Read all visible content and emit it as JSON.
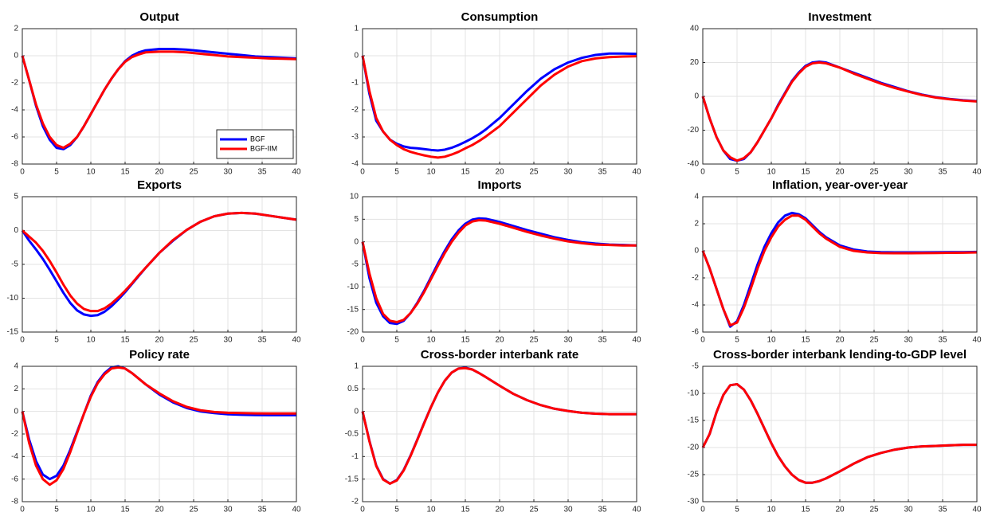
{
  "chart_data": [
    {
      "type": "line",
      "title": "Output",
      "legend": "lower right",
      "x": [
        0,
        1,
        2,
        3,
        4,
        5,
        6,
        7,
        8,
        9,
        10,
        11,
        12,
        13,
        14,
        15,
        16,
        17,
        18,
        20,
        22,
        24,
        26,
        28,
        30,
        32,
        34,
        36,
        38,
        40
      ],
      "series": [
        {
          "name": "BGF",
          "color": "#0000ff",
          "values": [
            0,
            -1.8,
            -3.7,
            -5.2,
            -6.2,
            -6.8,
            -6.9,
            -6.6,
            -6.0,
            -5.2,
            -4.3,
            -3.4,
            -2.5,
            -1.7,
            -1.0,
            -0.4,
            0,
            0.25,
            0.4,
            0.5,
            0.5,
            0.45,
            0.35,
            0.25,
            0.15,
            0.05,
            -0.05,
            -0.1,
            -0.15,
            -0.2
          ]
        },
        {
          "name": "BGF-IIM",
          "color": "#ff0000",
          "values": [
            0,
            -1.8,
            -3.6,
            -5.0,
            -6.0,
            -6.6,
            -6.8,
            -6.5,
            -6.0,
            -5.2,
            -4.3,
            -3.4,
            -2.5,
            -1.7,
            -1.0,
            -0.45,
            -0.1,
            0.1,
            0.25,
            0.3,
            0.3,
            0.25,
            0.15,
            0.05,
            -0.05,
            -0.1,
            -0.15,
            -0.2,
            -0.22,
            -0.25
          ]
        }
      ],
      "xlim": [
        0,
        40
      ],
      "xticks": [
        0,
        5,
        10,
        15,
        20,
        25,
        30,
        35,
        40
      ],
      "ylim": [
        -8,
        2
      ],
      "yticks": [
        -8,
        -6,
        -4,
        -2,
        0,
        2
      ],
      "grid": true
    },
    {
      "type": "line",
      "title": "Consumption",
      "x": [
        0,
        1,
        2,
        3,
        4,
        5,
        6,
        7,
        8,
        9,
        10,
        11,
        12,
        13,
        14,
        15,
        16,
        17,
        18,
        20,
        22,
        24,
        26,
        28,
        30,
        32,
        34,
        36,
        38,
        40
      ],
      "series": [
        {
          "color": "#0000ff",
          "values": [
            0,
            -1.4,
            -2.4,
            -2.8,
            -3.1,
            -3.25,
            -3.35,
            -3.4,
            -3.42,
            -3.45,
            -3.48,
            -3.5,
            -3.47,
            -3.4,
            -3.3,
            -3.18,
            -3.05,
            -2.9,
            -2.72,
            -2.3,
            -1.8,
            -1.3,
            -0.85,
            -0.5,
            -0.25,
            -0.08,
            0.03,
            0.08,
            0.08,
            0.07
          ]
        },
        {
          "color": "#ff0000",
          "values": [
            0,
            -1.3,
            -2.3,
            -2.8,
            -3.1,
            -3.3,
            -3.45,
            -3.55,
            -3.62,
            -3.68,
            -3.73,
            -3.76,
            -3.73,
            -3.65,
            -3.55,
            -3.42,
            -3.3,
            -3.15,
            -2.98,
            -2.6,
            -2.1,
            -1.6,
            -1.1,
            -0.7,
            -0.4,
            -0.2,
            -0.1,
            -0.05,
            -0.03,
            -0.02
          ]
        }
      ],
      "xlim": [
        0,
        40
      ],
      "xticks": [
        0,
        5,
        10,
        15,
        20,
        25,
        30,
        35,
        40
      ],
      "ylim": [
        -4,
        1
      ],
      "yticks": [
        -4,
        -3,
        -2,
        -1,
        0,
        1
      ],
      "grid": true
    },
    {
      "type": "line",
      "title": "Investment",
      "x": [
        0,
        1,
        2,
        3,
        4,
        5,
        6,
        7,
        8,
        9,
        10,
        11,
        12,
        13,
        14,
        15,
        16,
        17,
        18,
        20,
        22,
        24,
        26,
        28,
        30,
        32,
        34,
        36,
        38,
        40
      ],
      "series": [
        {
          "color": "#0000ff",
          "values": [
            0,
            -13,
            -24,
            -32,
            -37,
            -38,
            -37,
            -33,
            -27,
            -20,
            -13,
            -5,
            2,
            9,
            14,
            18,
            20,
            20.5,
            20,
            17,
            14,
            11,
            8,
            5.5,
            3,
            1,
            -0.5,
            -1.5,
            -2.3,
            -2.8
          ]
        },
        {
          "color": "#ff0000",
          "values": [
            0,
            -13,
            -24,
            -32,
            -36,
            -38,
            -36.5,
            -33,
            -27,
            -20,
            -13,
            -5.5,
            1.5,
            8.5,
            13.5,
            17.5,
            19.5,
            20,
            19.5,
            17,
            13.5,
            10.5,
            7.5,
            5,
            2.8,
            0.8,
            -0.7,
            -1.7,
            -2.5,
            -3
          ]
        }
      ],
      "xlim": [
        0,
        40
      ],
      "xticks": [
        0,
        5,
        10,
        15,
        20,
        25,
        30,
        35,
        40
      ],
      "ylim": [
        -40,
        40
      ],
      "yticks": [
        -40,
        -20,
        0,
        20,
        40
      ],
      "grid": true
    },
    {
      "type": "line",
      "title": "Exports",
      "x": [
        0,
        1,
        2,
        3,
        4,
        5,
        6,
        7,
        8,
        9,
        10,
        11,
        12,
        13,
        14,
        15,
        16,
        17,
        18,
        20,
        22,
        24,
        26,
        28,
        30,
        32,
        34,
        36,
        38,
        40
      ],
      "series": [
        {
          "color": "#0000ff",
          "values": [
            0,
            -1.5,
            -2.8,
            -4.2,
            -5.8,
            -7.5,
            -9.2,
            -10.7,
            -11.8,
            -12.4,
            -12.6,
            -12.5,
            -12.0,
            -11.2,
            -10.2,
            -9.1,
            -7.9,
            -6.7,
            -5.5,
            -3.3,
            -1.5,
            0.1,
            1.3,
            2.1,
            2.5,
            2.6,
            2.5,
            2.2,
            1.9,
            1.6
          ]
        },
        {
          "color": "#ff0000",
          "values": [
            0,
            -0.9,
            -1.8,
            -3.0,
            -4.5,
            -6.2,
            -8.0,
            -9.6,
            -10.8,
            -11.6,
            -11.9,
            -11.9,
            -11.5,
            -10.8,
            -9.9,
            -8.9,
            -7.8,
            -6.6,
            -5.5,
            -3.3,
            -1.4,
            0.1,
            1.3,
            2.1,
            2.5,
            2.6,
            2.5,
            2.2,
            1.9,
            1.6
          ]
        }
      ],
      "xlim": [
        0,
        40
      ],
      "xticks": [
        0,
        5,
        10,
        15,
        20,
        25,
        30,
        35,
        40
      ],
      "ylim": [
        -15,
        5
      ],
      "yticks": [
        -15,
        -10,
        -5,
        0,
        5
      ],
      "grid": true
    },
    {
      "type": "line",
      "title": "Imports",
      "x": [
        0,
        1,
        2,
        3,
        4,
        5,
        6,
        7,
        8,
        9,
        10,
        11,
        12,
        13,
        14,
        15,
        16,
        17,
        18,
        20,
        22,
        24,
        26,
        28,
        30,
        32,
        34,
        36,
        38,
        40
      ],
      "series": [
        {
          "color": "#0000ff",
          "values": [
            0,
            -8,
            -13.5,
            -16.5,
            -18,
            -18.2,
            -17.5,
            -15.8,
            -13.5,
            -10.8,
            -7.8,
            -4.8,
            -2,
            0.5,
            2.5,
            4,
            4.9,
            5.2,
            5.1,
            4.4,
            3.5,
            2.6,
            1.8,
            1.0,
            0.4,
            -0.1,
            -0.4,
            -0.6,
            -0.7,
            -0.8
          ]
        },
        {
          "color": "#ff0000",
          "values": [
            0,
            -7,
            -12.5,
            -16,
            -17.5,
            -17.8,
            -17.3,
            -15.8,
            -13.7,
            -11.1,
            -8.2,
            -5.3,
            -2.5,
            0,
            2,
            3.6,
            4.5,
            4.8,
            4.7,
            4.0,
            3.1,
            2.2,
            1.4,
            0.7,
            0.1,
            -0.3,
            -0.6,
            -0.7,
            -0.8,
            -0.8
          ]
        }
      ],
      "xlim": [
        0,
        40
      ],
      "xticks": [
        0,
        5,
        10,
        15,
        20,
        25,
        30,
        35,
        40
      ],
      "ylim": [
        -20,
        10
      ],
      "yticks": [
        -20,
        -15,
        -10,
        -5,
        0,
        5,
        10
      ],
      "grid": true
    },
    {
      "type": "line",
      "title": "Inflation, year-over-year",
      "x": [
        0,
        1,
        2,
        3,
        4,
        5,
        6,
        7,
        8,
        9,
        10,
        11,
        12,
        13,
        14,
        15,
        16,
        17,
        18,
        20,
        22,
        24,
        26,
        28,
        30,
        32,
        34,
        36,
        38,
        40
      ],
      "series": [
        {
          "color": "#0000ff",
          "values": [
            0,
            -1.3,
            -2.8,
            -4.3,
            -5.6,
            -5.2,
            -4.0,
            -2.5,
            -1.0,
            0.3,
            1.3,
            2.1,
            2.6,
            2.8,
            2.7,
            2.4,
            1.9,
            1.4,
            1.0,
            0.4,
            0.1,
            -0.05,
            -0.1,
            -0.12,
            -0.12,
            -0.12,
            -0.11,
            -0.1,
            -0.1,
            -0.08
          ]
        },
        {
          "color": "#ff0000",
          "values": [
            0,
            -1.3,
            -2.8,
            -4.3,
            -5.5,
            -5.3,
            -4.2,
            -2.8,
            -1.3,
            0,
            1.0,
            1.8,
            2.3,
            2.6,
            2.6,
            2.3,
            1.8,
            1.3,
            0.9,
            0.3,
            0,
            -0.12,
            -0.17,
            -0.18,
            -0.18,
            -0.17,
            -0.16,
            -0.15,
            -0.14,
            -0.12
          ]
        }
      ],
      "xlim": [
        0,
        40
      ],
      "xticks": [
        0,
        5,
        10,
        15,
        20,
        25,
        30,
        35,
        40
      ],
      "ylim": [
        -6,
        4
      ],
      "yticks": [
        -6,
        -4,
        -2,
        0,
        2,
        4
      ],
      "grid": true
    },
    {
      "type": "line",
      "title": "Policy rate",
      "x": [
        0,
        1,
        2,
        3,
        4,
        5,
        6,
        7,
        8,
        9,
        10,
        11,
        12,
        13,
        14,
        15,
        16,
        17,
        18,
        20,
        22,
        24,
        26,
        28,
        30,
        32,
        34,
        36,
        38,
        40
      ],
      "series": [
        {
          "color": "#0000ff",
          "values": [
            0,
            -2.5,
            -4.4,
            -5.6,
            -6.0,
            -5.7,
            -4.8,
            -3.4,
            -1.8,
            -0.2,
            1.4,
            2.6,
            3.4,
            3.9,
            4.0,
            3.8,
            3.4,
            2.9,
            2.4,
            1.5,
            0.8,
            0.3,
            0,
            -0.15,
            -0.25,
            -0.3,
            -0.32,
            -0.33,
            -0.33,
            -0.33
          ]
        },
        {
          "color": "#ff0000",
          "values": [
            0,
            -2.8,
            -4.8,
            -6.0,
            -6.5,
            -6.1,
            -5.1,
            -3.6,
            -1.9,
            -0.2,
            1.3,
            2.5,
            3.3,
            3.8,
            3.9,
            3.8,
            3.4,
            2.9,
            2.4,
            1.6,
            0.9,
            0.4,
            0.1,
            -0.05,
            -0.12,
            -0.15,
            -0.17,
            -0.18,
            -0.18,
            -0.18
          ]
        }
      ],
      "xlim": [
        0,
        40
      ],
      "xticks": [
        0,
        5,
        10,
        15,
        20,
        25,
        30,
        35,
        40
      ],
      "ylim": [
        -8,
        4
      ],
      "yticks": [
        -8,
        -6,
        -4,
        -2,
        0,
        2,
        4
      ],
      "grid": true
    },
    {
      "type": "line",
      "title": "Cross-border interbank rate",
      "x": [
        0,
        1,
        2,
        3,
        4,
        5,
        6,
        7,
        8,
        9,
        10,
        11,
        12,
        13,
        14,
        15,
        16,
        17,
        18,
        20,
        22,
        24,
        26,
        28,
        30,
        32,
        34,
        36,
        38,
        40
      ],
      "series": [
        {
          "color": "#0000ff",
          "values": [
            0,
            -0.65,
            -1.2,
            -1.5,
            -1.6,
            -1.52,
            -1.3,
            -0.98,
            -0.62,
            -0.25,
            0.1,
            0.42,
            0.68,
            0.86,
            0.95,
            0.97,
            0.93,
            0.85,
            0.76,
            0.57,
            0.39,
            0.25,
            0.14,
            0.06,
            0.01,
            -0.03,
            -0.05,
            -0.06,
            -0.06,
            -0.06
          ]
        },
        {
          "color": "#ff0000",
          "values": [
            0,
            -0.66,
            -1.21,
            -1.51,
            -1.6,
            -1.53,
            -1.31,
            -0.99,
            -0.63,
            -0.26,
            0.1,
            0.42,
            0.68,
            0.86,
            0.95,
            0.96,
            0.93,
            0.85,
            0.76,
            0.57,
            0.39,
            0.25,
            0.14,
            0.06,
            0.01,
            -0.03,
            -0.05,
            -0.06,
            -0.06,
            -0.06
          ]
        }
      ],
      "xlim": [
        0,
        40
      ],
      "xticks": [
        0,
        5,
        10,
        15,
        20,
        25,
        30,
        35,
        40
      ],
      "ylim": [
        -2,
        1
      ],
      "yticks": [
        -2,
        -1.5,
        -1,
        -0.5,
        0,
        0.5,
        1
      ],
      "grid": true
    },
    {
      "type": "line",
      "title": "Cross-border interbank lending-to-GDP level",
      "x": [
        0,
        1,
        2,
        3,
        4,
        5,
        6,
        7,
        8,
        9,
        10,
        11,
        12,
        13,
        14,
        15,
        16,
        17,
        18,
        20,
        22,
        24,
        26,
        28,
        30,
        32,
        34,
        36,
        38,
        40
      ],
      "series": [
        {
          "color": "#0000ff",
          "values": [
            -20,
            -17.5,
            -13.5,
            -10.3,
            -8.5,
            -8.3,
            -9.3,
            -11.3,
            -13.8,
            -16.5,
            -19.2,
            -21.6,
            -23.5,
            -25,
            -26,
            -26.5,
            -26.5,
            -26.2,
            -25.7,
            -24.4,
            -23,
            -21.8,
            -21,
            -20.4,
            -20,
            -19.8,
            -19.7,
            -19.6,
            -19.5,
            -19.5
          ]
        },
        {
          "color": "#ff0000",
          "values": [
            -20,
            -17.5,
            -13.5,
            -10.3,
            -8.5,
            -8.3,
            -9.3,
            -11.3,
            -13.8,
            -16.5,
            -19.2,
            -21.6,
            -23.5,
            -25,
            -26,
            -26.5,
            -26.5,
            -26.2,
            -25.7,
            -24.4,
            -23,
            -21.8,
            -21,
            -20.4,
            -20,
            -19.8,
            -19.7,
            -19.6,
            -19.5,
            -19.5
          ]
        }
      ],
      "xlim": [
        0,
        40
      ],
      "xticks": [
        0,
        5,
        10,
        15,
        20,
        25,
        30,
        35,
        40
      ],
      "ylim": [
        -30,
        -5
      ],
      "yticks": [
        -30,
        -25,
        -20,
        -15,
        -10,
        -5
      ],
      "grid": true
    }
  ]
}
